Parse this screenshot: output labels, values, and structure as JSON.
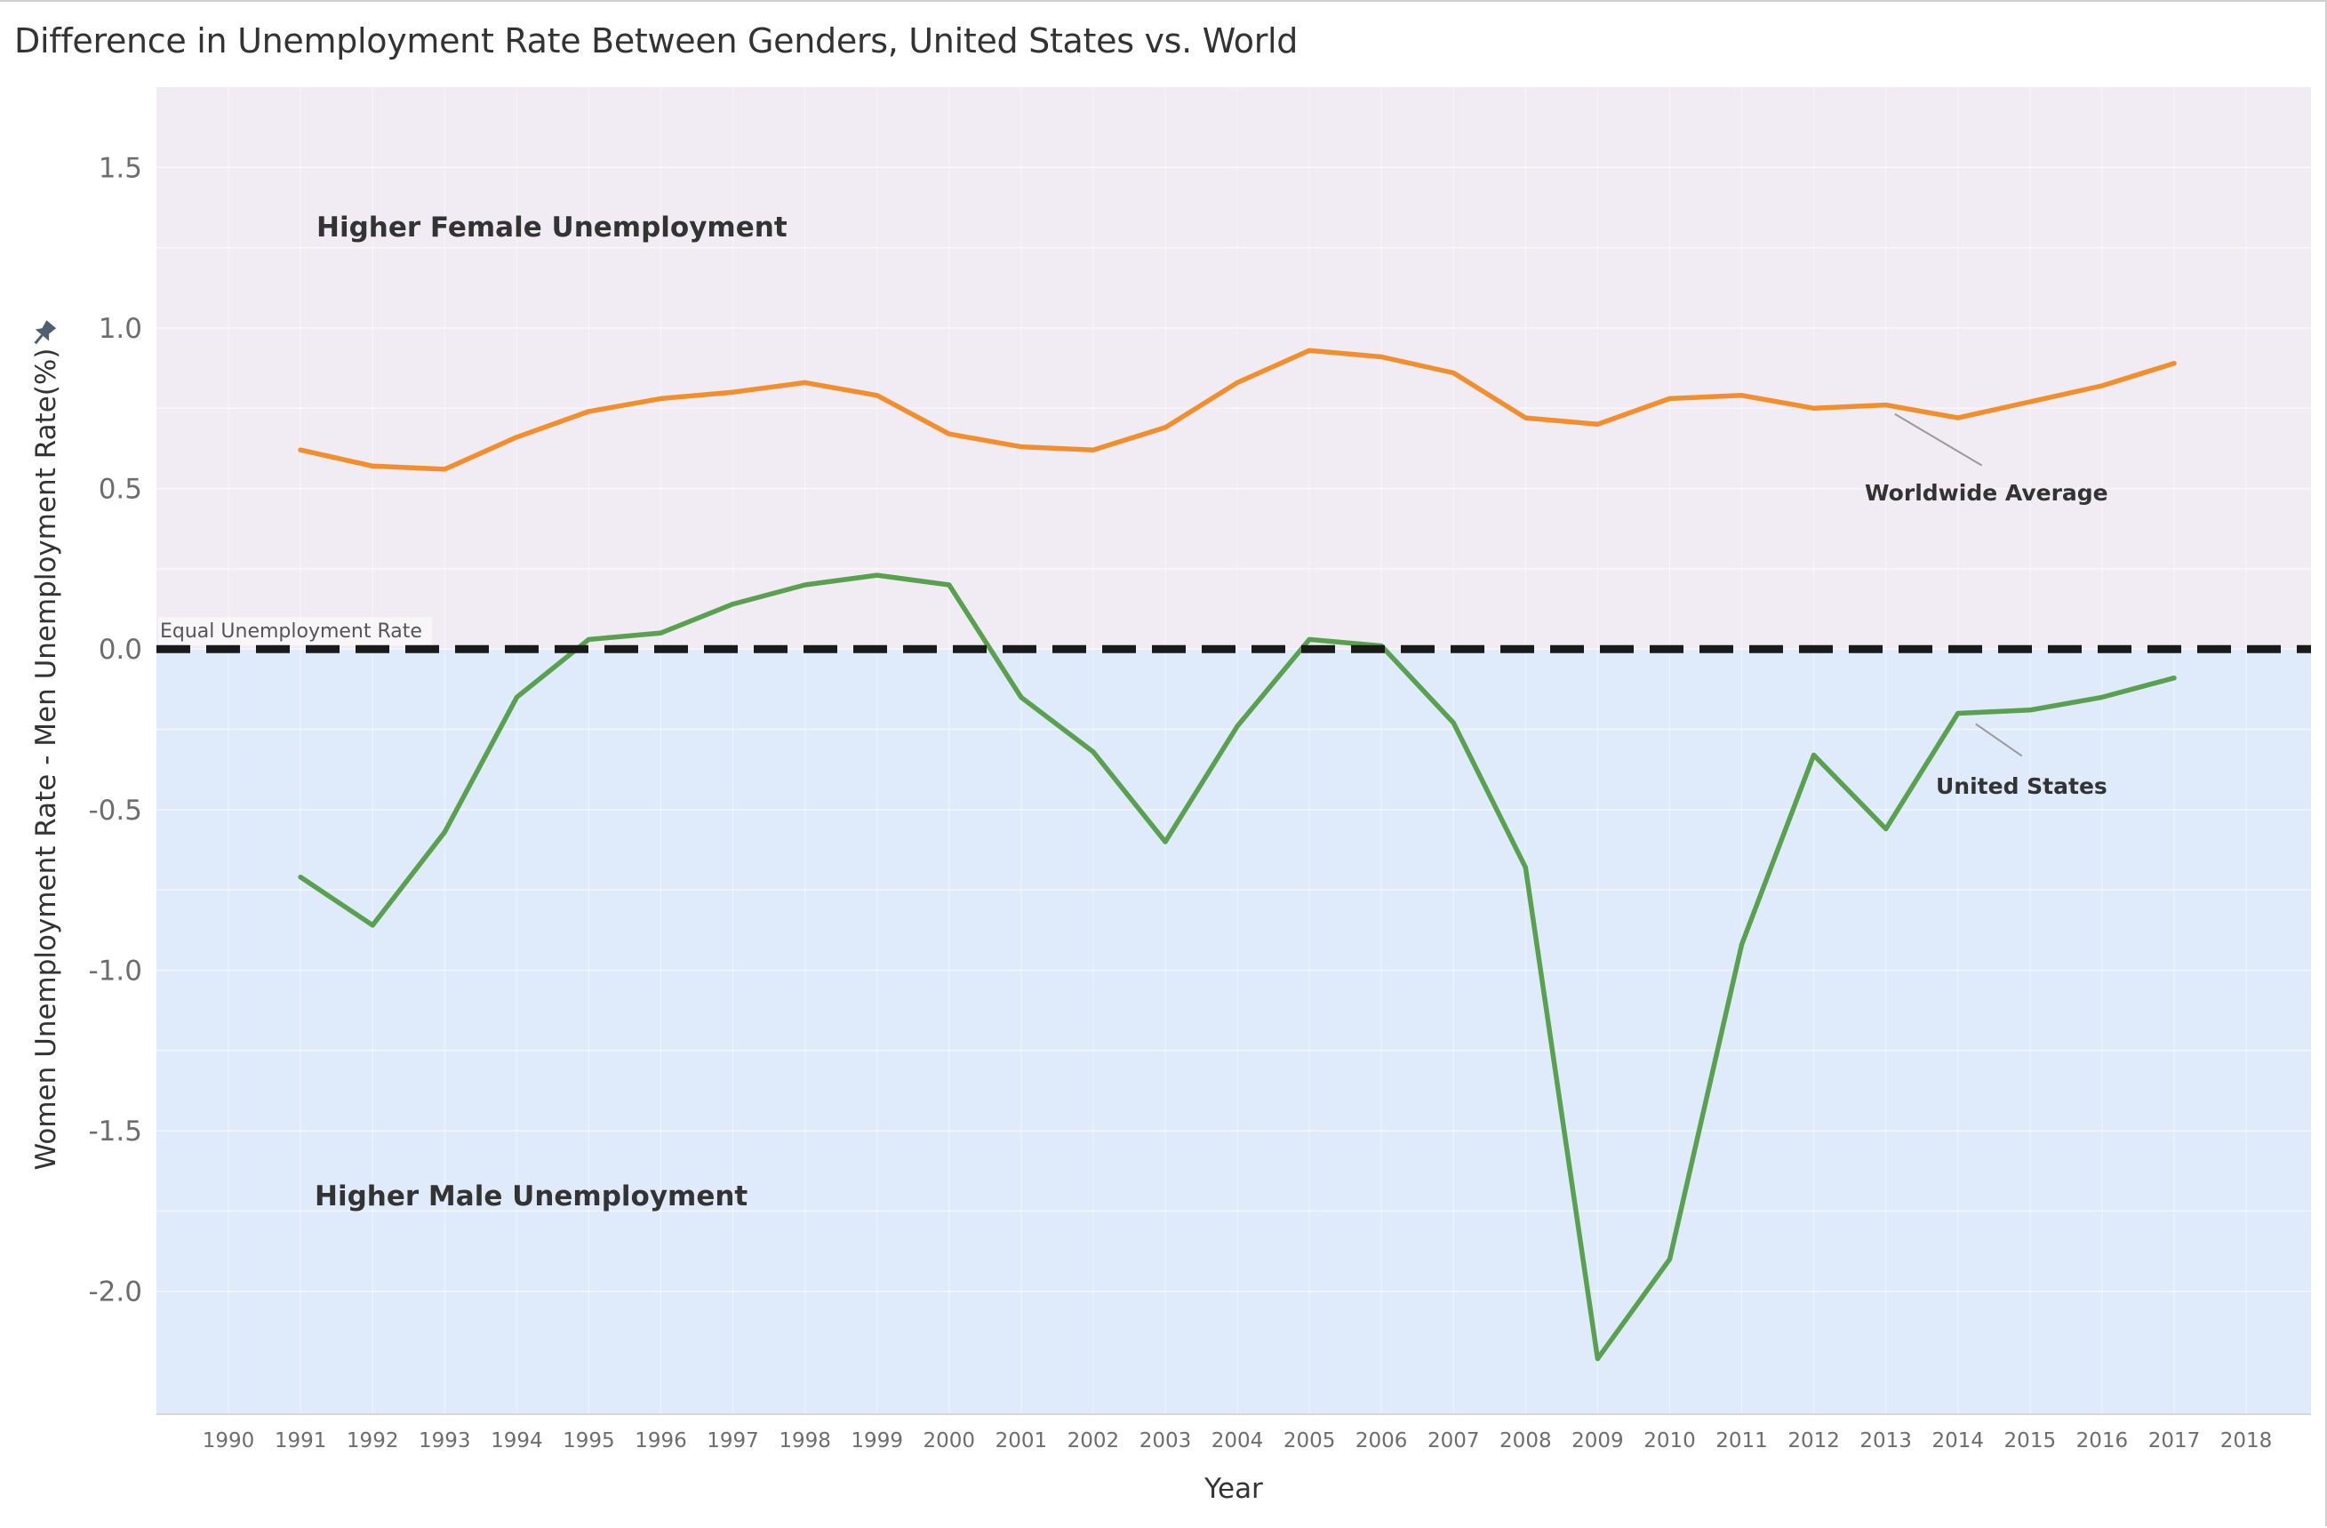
{
  "title": "Difference in Unemployment Rate Between Genders, United States vs. World",
  "colors": {
    "female_region": "#f1ebf3",
    "male_region": "#dfeafb",
    "worldwide": "#f28e2b",
    "united_states": "#59a14f",
    "reference_line": "#1a1a1a",
    "pin_icon": "#4e5f73"
  },
  "pin_icon": "pin-icon",
  "chart_data": {
    "type": "line",
    "title": "Difference in Unemployment Rate Between Genders, United States vs. World",
    "xlabel": "Year",
    "ylabel": "Women Unemployment Rate - Men Unemployment Rate(%)",
    "x_ticks": [
      1990,
      1991,
      1992,
      1993,
      1994,
      1995,
      1996,
      1997,
      1998,
      1999,
      2000,
      2001,
      2002,
      2003,
      2004,
      2005,
      2006,
      2007,
      2008,
      2009,
      2010,
      2011,
      2012,
      2013,
      2014,
      2015,
      2016,
      2017,
      2018
    ],
    "xlim": [
      1989.0,
      2018.9
    ],
    "y_ticks": [
      1.5,
      1.0,
      0.5,
      0.0,
      -0.5,
      -1.0,
      -1.5,
      -2.0
    ],
    "ylim": [
      -2.38,
      1.75
    ],
    "grid": true,
    "reference_line": {
      "y": 0.0,
      "label": "Equal Unemployment Rate",
      "style": "dashed"
    },
    "regions": [
      {
        "label": "Higher Female Unemployment",
        "from": 0.0,
        "to": 1.75
      },
      {
        "label": "Higher Male Unemployment",
        "from": -2.38,
        "to": 0.0
      }
    ],
    "x": [
      1991,
      1992,
      1993,
      1994,
      1995,
      1996,
      1997,
      1998,
      1999,
      2000,
      2001,
      2002,
      2003,
      2004,
      2005,
      2006,
      2007,
      2008,
      2009,
      2010,
      2011,
      2012,
      2013,
      2014,
      2015,
      2016,
      2017
    ],
    "series": [
      {
        "name": "Worldwide Average",
        "values": [
          0.62,
          0.57,
          0.56,
          0.66,
          0.74,
          0.78,
          0.8,
          0.83,
          0.79,
          0.67,
          0.63,
          0.62,
          0.69,
          0.83,
          0.93,
          0.91,
          0.86,
          0.72,
          0.7,
          0.78,
          0.79,
          0.75,
          0.76,
          0.72,
          0.77,
          0.82,
          0.89
        ]
      },
      {
        "name": "United States",
        "values": [
          -0.71,
          -0.86,
          -0.57,
          -0.15,
          0.03,
          0.05,
          0.14,
          0.2,
          0.23,
          0.2,
          -0.15,
          -0.32,
          -0.6,
          -0.24,
          0.03,
          0.01,
          -0.23,
          -0.68,
          -2.21,
          -1.9,
          -0.92,
          -0.33,
          -0.56,
          -0.2,
          -0.19,
          -0.15,
          -0.09
        ]
      }
    ]
  }
}
